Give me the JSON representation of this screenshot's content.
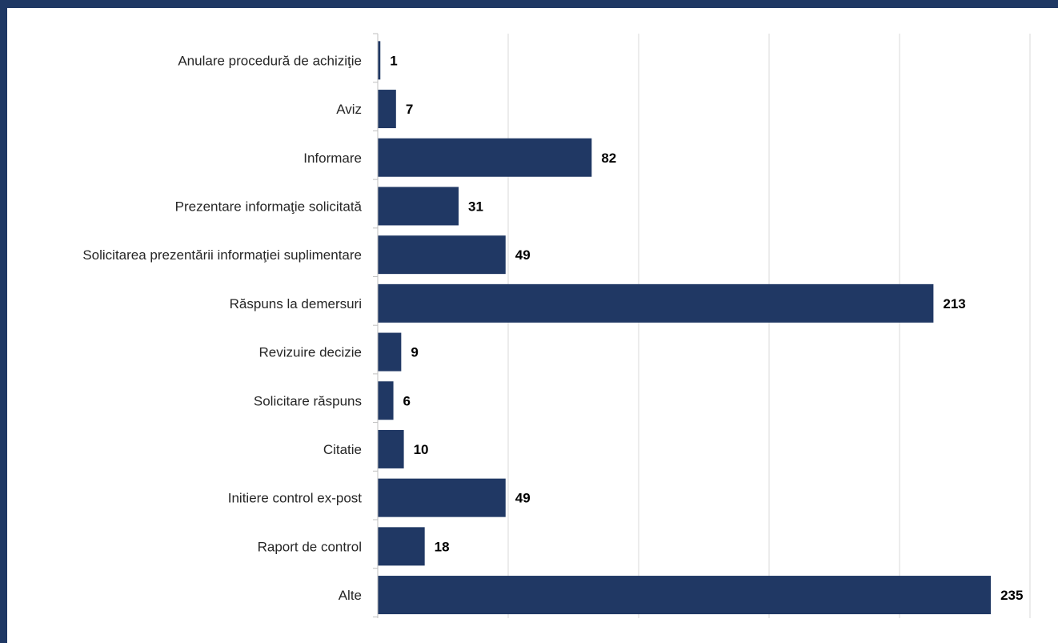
{
  "colors": {
    "frame": "#1f3864",
    "bar": "#203864",
    "grid": "#d9d9d9",
    "axis": "#bfbfbf"
  },
  "chart_data": {
    "type": "bar",
    "orientation": "horizontal",
    "categories": [
      "Anulare procedură de achiziţie",
      "Aviz",
      "Informare",
      "Prezentare informaţie solicitată",
      "Solicitarea prezentării informaţiei suplimentare",
      "Răspuns la demersuri",
      "Revizuire decizie",
      "Solicitare răspuns",
      "Citatie",
      "Initiere control ex-post",
      "Raport de control",
      "Alte"
    ],
    "values": [
      1,
      7,
      82,
      31,
      49,
      213,
      9,
      6,
      10,
      49,
      18,
      235
    ],
    "title": "",
    "xlabel": "",
    "ylabel": "",
    "xlim": [
      0,
      250
    ],
    "grid_step": 50,
    "grid": true,
    "data_labels": true,
    "legend": "none"
  }
}
